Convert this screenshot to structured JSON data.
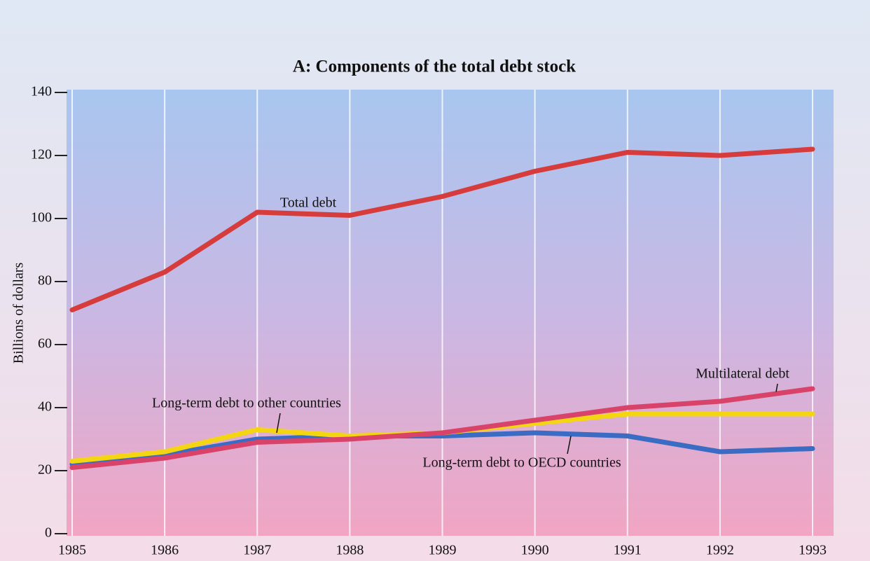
{
  "chart_data": {
    "type": "line",
    "title": "A: Components of the total debt stock",
    "ylabel": "Billions of dollars",
    "x": [
      1985,
      1986,
      1987,
      1988,
      1989,
      1990,
      1991,
      1992,
      1993
    ],
    "xlim": [
      1985,
      1993
    ],
    "ylim": [
      0,
      140
    ],
    "yticks": [
      0,
      20,
      40,
      60,
      80,
      100,
      120,
      140
    ],
    "grid": true,
    "series": [
      {
        "name": "Long-term debt to OECD countries",
        "color": "#3a6cc4",
        "values": [
          22,
          25,
          30,
          31,
          31,
          32,
          31,
          26,
          27
        ]
      },
      {
        "name": "Long-term debt to other countries",
        "color": "#f4d512",
        "values": [
          23,
          26,
          33,
          31,
          32,
          35,
          38,
          38,
          38
        ]
      },
      {
        "name": "Multilateral debt",
        "color": "#d9436a",
        "values": [
          21,
          24,
          29,
          30,
          32,
          36,
          40,
          42,
          46
        ]
      },
      {
        "name": "Total debt",
        "color": "#d63c3c",
        "values": [
          71,
          83,
          102,
          101,
          107,
          115,
          121,
          120,
          122
        ]
      }
    ]
  }
}
